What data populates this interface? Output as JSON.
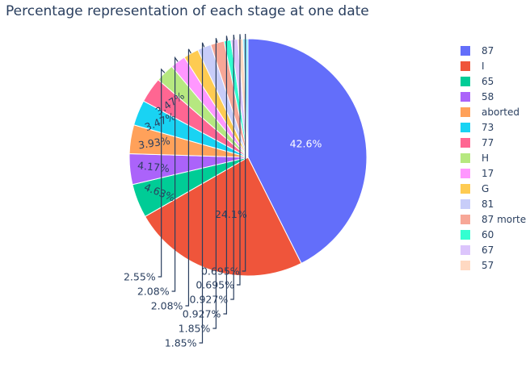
{
  "chart_data": {
    "type": "pie",
    "title": "Percentage representation of each stage at one date",
    "sort": "descending",
    "direction": "clockwise",
    "legend_position": "right",
    "slices": [
      {
        "label": "87",
        "value": 42.6,
        "text": "42.6%",
        "color": "#636efa"
      },
      {
        "label": "I",
        "value": 24.1,
        "text": "24.1%",
        "color": "#ef553b"
      },
      {
        "label": "65",
        "value": 4.63,
        "text": "4.63%",
        "color": "#00cc96"
      },
      {
        "label": "58",
        "value": 4.17,
        "text": "4.17%",
        "color": "#ab63fa"
      },
      {
        "label": "aborted",
        "value": 3.93,
        "text": "3.93%",
        "color": "#ffa15a"
      },
      {
        "label": "73",
        "value": 3.47,
        "text": "3.47%",
        "color": "#19d3f3"
      },
      {
        "label": "77",
        "value": 3.47,
        "text": "3.47%",
        "color": "#ff6692"
      },
      {
        "label": "H",
        "value": 2.55,
        "text": "2.55%",
        "color": "#b6e880"
      },
      {
        "label": "17",
        "value": 2.08,
        "text": "2.08%",
        "color": "#ff97ff"
      },
      {
        "label": "G",
        "value": 2.08,
        "text": "2.08%",
        "color": "#fecb52"
      },
      {
        "label": "81",
        "value": 1.85,
        "text": "1.85%",
        "color": "#c8cdf9"
      },
      {
        "label": "87 morte",
        "value": 1.85,
        "text": "1.85%",
        "color": "#f7a797"
      },
      {
        "label": "60",
        "value": 0.927,
        "text": "0.927%",
        "color": "#33ffd1"
      },
      {
        "label": "67",
        "value": 0.927,
        "text": "0.927%",
        "color": "#dcc5fc"
      },
      {
        "label": "57",
        "value": 0.695,
        "text": "0.695%",
        "color": "#ffd9c2"
      },
      {
        "label": "",
        "value": 0.695,
        "text": "0.695%",
        "color": "#8fe8f9"
      }
    ]
  }
}
